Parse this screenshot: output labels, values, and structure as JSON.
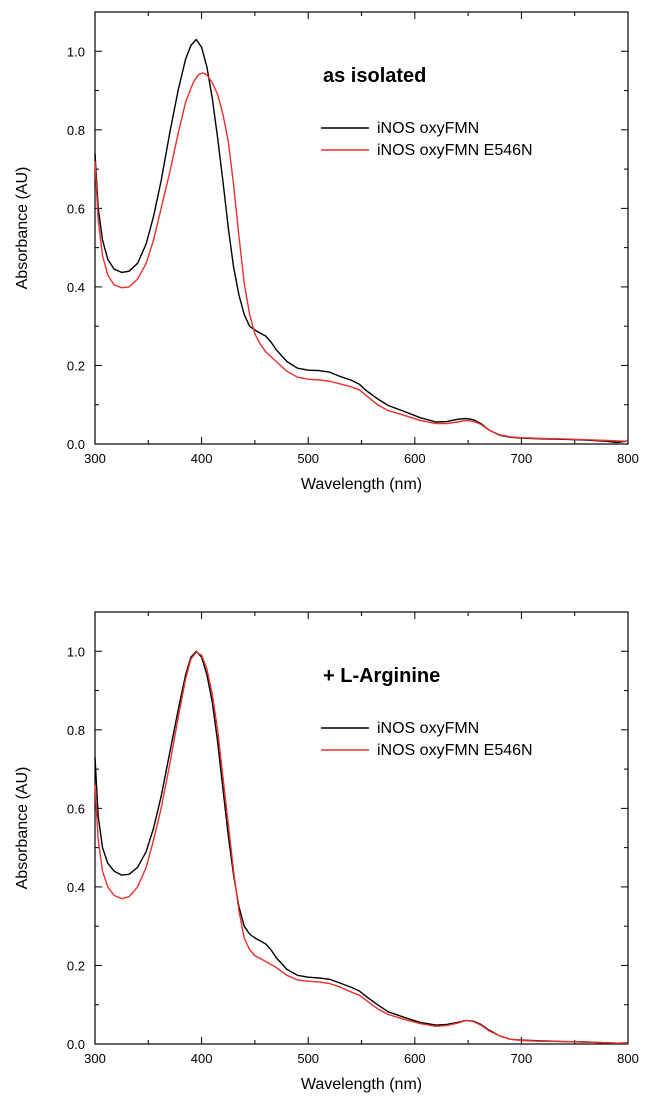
{
  "chart_data": [
    {
      "type": "line",
      "annotation": "as isolated",
      "xlabel": "Wavelength (nm)",
      "ylabel": "Absorbance (AU)",
      "xlim": [
        300,
        800
      ],
      "ylim": [
        0,
        1.1
      ],
      "x_ticks": [
        300,
        400,
        500,
        600,
        700,
        800
      ],
      "y_ticks": [
        "0.0",
        "0.2",
        "0.4",
        "0.6",
        "0.8",
        "1.0"
      ],
      "legend_position": "top-right",
      "series": [
        {
          "name": "iNOS oxyFMN",
          "color": "#000000",
          "points": [
            [
              300,
              0.74
            ],
            [
              303,
              0.6
            ],
            [
              307,
              0.52
            ],
            [
              312,
              0.47
            ],
            [
              318,
              0.445
            ],
            [
              325,
              0.437
            ],
            [
              332,
              0.44
            ],
            [
              340,
              0.46
            ],
            [
              348,
              0.51
            ],
            [
              355,
              0.58
            ],
            [
              362,
              0.67
            ],
            [
              370,
              0.79
            ],
            [
              378,
              0.9
            ],
            [
              385,
              0.98
            ],
            [
              390,
              1.015
            ],
            [
              395,
              1.03
            ],
            [
              400,
              1.01
            ],
            [
              405,
              0.96
            ],
            [
              410,
              0.88
            ],
            [
              415,
              0.78
            ],
            [
              420,
              0.67
            ],
            [
              425,
              0.55
            ],
            [
              430,
              0.45
            ],
            [
              435,
              0.38
            ],
            [
              440,
              0.33
            ],
            [
              445,
              0.3
            ],
            [
              450,
              0.29
            ],
            [
              460,
              0.275
            ],
            [
              465,
              0.26
            ],
            [
              470,
              0.24
            ],
            [
              480,
              0.21
            ],
            [
              490,
              0.193
            ],
            [
              500,
              0.188
            ],
            [
              510,
              0.187
            ],
            [
              520,
              0.183
            ],
            [
              530,
              0.172
            ],
            [
              540,
              0.163
            ],
            [
              548,
              0.152
            ],
            [
              555,
              0.135
            ],
            [
              565,
              0.115
            ],
            [
              575,
              0.098
            ],
            [
              590,
              0.083
            ],
            [
              605,
              0.067
            ],
            [
              620,
              0.056
            ],
            [
              630,
              0.057
            ],
            [
              640,
              0.063
            ],
            [
              648,
              0.065
            ],
            [
              655,
              0.062
            ],
            [
              662,
              0.052
            ],
            [
              670,
              0.035
            ],
            [
              680,
              0.022
            ],
            [
              690,
              0.017
            ],
            [
              700,
              0.015
            ],
            [
              720,
              0.013
            ],
            [
              740,
              0.012
            ],
            [
              760,
              0.01
            ],
            [
              780,
              0.007
            ],
            [
              790,
              0.004
            ],
            [
              800,
              0.008
            ]
          ]
        },
        {
          "name": "iNOS oxyFMN E546N",
          "color": "#e8302c",
          "points": [
            [
              300,
              0.72
            ],
            [
              303,
              0.57
            ],
            [
              307,
              0.48
            ],
            [
              312,
              0.43
            ],
            [
              318,
              0.405
            ],
            [
              325,
              0.398
            ],
            [
              332,
              0.4
            ],
            [
              340,
              0.42
            ],
            [
              348,
              0.46
            ],
            [
              355,
              0.52
            ],
            [
              362,
              0.6
            ],
            [
              370,
              0.69
            ],
            [
              378,
              0.79
            ],
            [
              385,
              0.87
            ],
            [
              392,
              0.92
            ],
            [
              397,
              0.94
            ],
            [
              401,
              0.945
            ],
            [
              405,
              0.94
            ],
            [
              410,
              0.92
            ],
            [
              415,
              0.89
            ],
            [
              420,
              0.84
            ],
            [
              425,
              0.77
            ],
            [
              430,
              0.66
            ],
            [
              435,
              0.53
            ],
            [
              440,
              0.41
            ],
            [
              445,
              0.33
            ],
            [
              450,
              0.28
            ],
            [
              455,
              0.255
            ],
            [
              460,
              0.235
            ],
            [
              470,
              0.21
            ],
            [
              480,
              0.185
            ],
            [
              490,
              0.17
            ],
            [
              500,
              0.165
            ],
            [
              510,
              0.163
            ],
            [
              520,
              0.16
            ],
            [
              530,
              0.153
            ],
            [
              540,
              0.146
            ],
            [
              548,
              0.138
            ],
            [
              555,
              0.122
            ],
            [
              565,
              0.1
            ],
            [
              575,
              0.085
            ],
            [
              590,
              0.073
            ],
            [
              605,
              0.06
            ],
            [
              620,
              0.052
            ],
            [
              630,
              0.052
            ],
            [
              640,
              0.056
            ],
            [
              648,
              0.06
            ],
            [
              655,
              0.058
            ],
            [
              662,
              0.05
            ],
            [
              670,
              0.035
            ],
            [
              680,
              0.023
            ],
            [
              690,
              0.018
            ],
            [
              700,
              0.016
            ],
            [
              720,
              0.014
            ],
            [
              740,
              0.013
            ],
            [
              760,
              0.011
            ],
            [
              780,
              0.009
            ],
            [
              790,
              0.008
            ],
            [
              800,
              0.007
            ]
          ]
        }
      ]
    },
    {
      "type": "line",
      "annotation": "+ L-Arginine",
      "xlabel": "Wavelength (nm)",
      "ylabel": "Absorbance (AU)",
      "xlim": [
        300,
        800
      ],
      "ylim": [
        0,
        1.1
      ],
      "x_ticks": [
        300,
        400,
        500,
        600,
        700,
        800
      ],
      "y_ticks": [
        "0.0",
        "0.2",
        "0.4",
        "0.6",
        "0.8",
        "1.0"
      ],
      "legend_position": "top-right",
      "series": [
        {
          "name": "iNOS oxyFMN",
          "color": "#000000",
          "points": [
            [
              300,
              0.73
            ],
            [
              303,
              0.58
            ],
            [
              307,
              0.5
            ],
            [
              312,
              0.46
            ],
            [
              318,
              0.44
            ],
            [
              325,
              0.43
            ],
            [
              332,
              0.432
            ],
            [
              340,
              0.45
            ],
            [
              348,
              0.49
            ],
            [
              355,
              0.55
            ],
            [
              362,
              0.63
            ],
            [
              370,
              0.74
            ],
            [
              378,
              0.85
            ],
            [
              385,
              0.94
            ],
            [
              390,
              0.985
            ],
            [
              395,
              1.0
            ],
            [
              400,
              0.985
            ],
            [
              405,
              0.94
            ],
            [
              410,
              0.87
            ],
            [
              415,
              0.77
            ],
            [
              420,
              0.65
            ],
            [
              425,
              0.53
            ],
            [
              430,
              0.43
            ],
            [
              435,
              0.35
            ],
            [
              440,
              0.3
            ],
            [
              445,
              0.28
            ],
            [
              450,
              0.27
            ],
            [
              460,
              0.255
            ],
            [
              465,
              0.24
            ],
            [
              470,
              0.22
            ],
            [
              480,
              0.19
            ],
            [
              490,
              0.175
            ],
            [
              500,
              0.17
            ],
            [
              510,
              0.168
            ],
            [
              520,
              0.165
            ],
            [
              530,
              0.155
            ],
            [
              540,
              0.145
            ],
            [
              548,
              0.135
            ],
            [
              555,
              0.12
            ],
            [
              565,
              0.1
            ],
            [
              575,
              0.082
            ],
            [
              590,
              0.068
            ],
            [
              605,
              0.055
            ],
            [
              620,
              0.048
            ],
            [
              630,
              0.05
            ],
            [
              640,
              0.055
            ],
            [
              648,
              0.06
            ],
            [
              655,
              0.058
            ],
            [
              662,
              0.05
            ],
            [
              670,
              0.035
            ],
            [
              680,
              0.02
            ],
            [
              690,
              0.012
            ],
            [
              700,
              0.01
            ],
            [
              720,
              0.008
            ],
            [
              740,
              0.006
            ],
            [
              760,
              0.005
            ],
            [
              780,
              0.003
            ],
            [
              790,
              0.002
            ],
            [
              800,
              0.003
            ]
          ]
        },
        {
          "name": "iNOS oxyFMN E546N",
          "color": "#e8302c",
          "points": [
            [
              300,
              0.66
            ],
            [
              303,
              0.52
            ],
            [
              307,
              0.44
            ],
            [
              312,
              0.4
            ],
            [
              318,
              0.378
            ],
            [
              325,
              0.37
            ],
            [
              332,
              0.375
            ],
            [
              340,
              0.4
            ],
            [
              348,
              0.45
            ],
            [
              355,
              0.52
            ],
            [
              362,
              0.6
            ],
            [
              370,
              0.71
            ],
            [
              378,
              0.83
            ],
            [
              385,
              0.93
            ],
            [
              390,
              0.98
            ],
            [
              395,
              0.998
            ],
            [
              400,
              0.99
            ],
            [
              405,
              0.955
            ],
            [
              410,
              0.89
            ],
            [
              415,
              0.8
            ],
            [
              420,
              0.68
            ],
            [
              425,
              0.56
            ],
            [
              430,
              0.44
            ],
            [
              435,
              0.34
            ],
            [
              440,
              0.27
            ],
            [
              445,
              0.24
            ],
            [
              450,
              0.225
            ],
            [
              460,
              0.21
            ],
            [
              470,
              0.195
            ],
            [
              480,
              0.175
            ],
            [
              490,
              0.163
            ],
            [
              500,
              0.16
            ],
            [
              510,
              0.158
            ],
            [
              520,
              0.154
            ],
            [
              530,
              0.145
            ],
            [
              540,
              0.133
            ],
            [
              548,
              0.124
            ],
            [
              555,
              0.11
            ],
            [
              565,
              0.09
            ],
            [
              575,
              0.075
            ],
            [
              590,
              0.063
            ],
            [
              605,
              0.052
            ],
            [
              620,
              0.045
            ],
            [
              630,
              0.047
            ],
            [
              640,
              0.053
            ],
            [
              648,
              0.06
            ],
            [
              655,
              0.057
            ],
            [
              662,
              0.048
            ],
            [
              670,
              0.033
            ],
            [
              680,
              0.02
            ],
            [
              690,
              0.012
            ],
            [
              700,
              0.009
            ],
            [
              720,
              0.007
            ],
            [
              740,
              0.006
            ],
            [
              760,
              0.005
            ],
            [
              780,
              0.003
            ],
            [
              790,
              0.002
            ],
            [
              800,
              0.002
            ]
          ]
        }
      ]
    }
  ]
}
